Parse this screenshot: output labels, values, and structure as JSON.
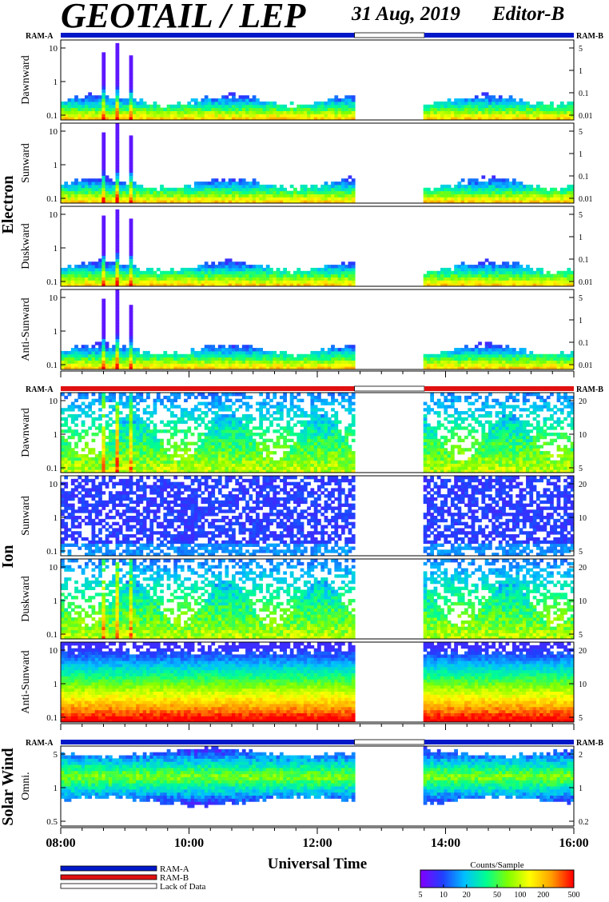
{
  "header": {
    "title": "GEOTAIL / LEP",
    "date": "31 Aug, 2019",
    "editor": "Editor-B"
  },
  "chart_data": {
    "type": "heatmap",
    "x_axis": {
      "label": "Universal Time",
      "range": [
        "08:00",
        "16:00"
      ],
      "tick_labels": [
        "08:00",
        "10:00",
        "12:00",
        "14:00",
        "16:00"
      ],
      "tick_hours": [
        8,
        10,
        12,
        14,
        16
      ],
      "minor_tick_minutes": 20
    },
    "data_gap": {
      "start_hour": 12.58,
      "end_hour": 13.67
    },
    "mode_bar_labels": {
      "left": "RAM-A",
      "right": "RAM-B"
    },
    "groups": [
      {
        "name": "Electron",
        "mode": "RAM-A",
        "mode_color": "#0018c8",
        "panels": [
          {
            "name": "Dawnward",
            "left_ticks": [
              "0.1",
              "1",
              "10"
            ],
            "right_ticks": [
              "0.01",
              "0.1",
              "1",
              "5"
            ],
            "profile": "electron"
          },
          {
            "name": "Sunward",
            "left_ticks": [
              "0.1",
              "1",
              "10"
            ],
            "right_ticks": [
              "0.01",
              "0.1",
              "1",
              "5"
            ],
            "profile": "electron"
          },
          {
            "name": "Duskward",
            "left_ticks": [
              "0.1",
              "1",
              "10"
            ],
            "right_ticks": [
              "0.01",
              "0.1",
              "1",
              "5"
            ],
            "profile": "electron"
          },
          {
            "name": "Anti-Sunward",
            "left_ticks": [
              "0.1",
              "1",
              "10"
            ],
            "right_ticks": [
              "0.01",
              "0.1",
              "1",
              "5"
            ],
            "profile": "electron"
          }
        ]
      },
      {
        "name": "Ion",
        "mode": "RAM-B",
        "mode_color": "#e01010",
        "panels": [
          {
            "name": "Dawnward",
            "left_ticks": [
              "0.1",
              "1",
              "10"
            ],
            "right_ticks": [
              "5",
              "10",
              "20"
            ],
            "profile": "ion_mid"
          },
          {
            "name": "Sunward",
            "left_ticks": [
              "0.1",
              "1",
              "10"
            ],
            "right_ticks": [
              "5",
              "10",
              "20"
            ],
            "profile": "ion_sparse"
          },
          {
            "name": "Duskward",
            "left_ticks": [
              "0.1",
              "1",
              "10"
            ],
            "right_ticks": [
              "5",
              "10",
              "20"
            ],
            "profile": "ion_mid"
          },
          {
            "name": "Anti-Sunward",
            "left_ticks": [
              "0.1",
              "1",
              "10"
            ],
            "right_ticks": [
              "5",
              "10",
              "20"
            ],
            "profile": "ion_hot"
          }
        ]
      },
      {
        "name": "Solar Wind",
        "mode": "RAM-A",
        "mode_color": "#0018c8",
        "panels": [
          {
            "name": "Omni.",
            "left_ticks": [
              "0.5",
              "1",
              "5"
            ],
            "right_ticks": [
              "0.2",
              "1",
              "2"
            ],
            "profile": "solarwind"
          }
        ]
      }
    ],
    "legend": {
      "items": [
        {
          "label": "RAM-A",
          "color": "#0018c8"
        },
        {
          "label": "RAM-B",
          "color": "#e01010"
        },
        {
          "label": "Lack of Data",
          "color": "#ffffff"
        }
      ]
    },
    "colorbar": {
      "title": "Counts/Sample",
      "tick_labels": [
        "5",
        "10",
        "20",
        "50",
        "100",
        "200",
        "500"
      ],
      "tick_values": [
        5,
        10,
        20,
        50,
        100,
        200,
        500
      ],
      "range": [
        5,
        500
      ],
      "scale": "log",
      "colors": [
        "#8000ff",
        "#2040ff",
        "#00c0ff",
        "#00ff90",
        "#80ff00",
        "#ffff00",
        "#ffa000",
        "#ff0000"
      ]
    }
  }
}
